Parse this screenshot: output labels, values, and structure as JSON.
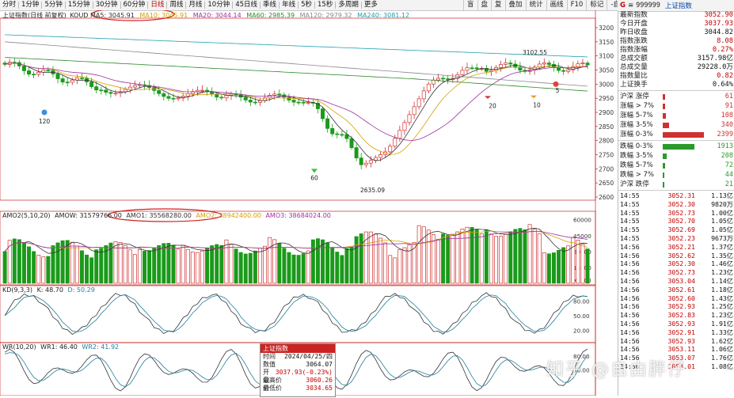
{
  "toolbar": {
    "tabs": [
      "分时",
      "1分钟",
      "5分钟",
      "15分钟",
      "30分钟",
      "60分钟",
      "日线",
      "周线",
      "月线",
      "10分钟",
      "45日线",
      "季线",
      "年线",
      "5秒",
      "15秒",
      "多周期",
      "更多"
    ],
    "active_index": 6,
    "right_buttons": [
      "盲",
      "盘",
      "复",
      "叠加",
      "统计",
      "画线",
      "F10",
      "标记",
      "-自选",
      "返回"
    ]
  },
  "price_panel": {
    "title": "上证指数(日线 前复权)",
    "indicator": "KOUD",
    "ma5": "MA5: 3045.91",
    "ma10": "MA10: 3045.91",
    "ma20": "MA20: 3044.14",
    "ma60": "MA60: 2985.39",
    "ma120": "MA120: 2979.32",
    "ma240": "MA240: 3081.12",
    "y_ticks": [
      "3200",
      "3150",
      "3100",
      "3050",
      "3000",
      "2950",
      "2900",
      "2850",
      "2800",
      "2750",
      "2700",
      "2650",
      "2600"
    ],
    "annotations": {
      "high": "3102.55",
      "low": "2635.09",
      "n120": "120",
      "n60": "60",
      "n20": "20",
      "n10": "10",
      "n5": "5"
    }
  },
  "volume_panel": {
    "title": "AMO2(5,10,20)",
    "amow": "AMOW: 31579766.00",
    "amo1": "AMO1: 35568280.00",
    "amo2": "AMO2: 38942400.00",
    "amo3": "AMO3: 38684024.00",
    "y_ticks": [
      "60000",
      "45000",
      "30000",
      "15000"
    ],
    "unit": "X1000"
  },
  "kd_panel": {
    "title": "KD(9,3,3)",
    "k": "K: 48.70",
    "d": "D: 50.29",
    "y_ticks": [
      "80.00",
      "50.00",
      "20.00"
    ]
  },
  "wr_panel": {
    "title": "WR(10,20)",
    "wr1": "WR1: 46.40",
    "wr2": "WR2: 41.92",
    "y_ticks": [
      "80.00",
      "50.00"
    ]
  },
  "popup": {
    "header": "上证指数",
    "rows": [
      {
        "k": "时间",
        "v": "2024/04/25/四"
      },
      {
        "k": "数值",
        "v": "3064.07"
      },
      {
        "k": "开盘价",
        "v": "3037.93(-0.23%)"
      },
      {
        "k": "最高价",
        "v": "3060.26"
      },
      {
        "k": "最低价",
        "v": "3034.65"
      }
    ]
  },
  "quote": {
    "code": "999999",
    "name": "上证指数",
    "rows": [
      {
        "k": "最新指数",
        "v": "3052.90",
        "c": "#c00000"
      },
      {
        "k": "今日开盘",
        "v": "3037.93",
        "c": "#c00000"
      },
      {
        "k": "昨日收盘",
        "v": "3044.82",
        "c": "#111111"
      },
      {
        "k": "指数涨跌",
        "v": "8.08",
        "c": "#c00000"
      },
      {
        "k": "指数涨幅",
        "v": "0.27%",
        "c": "#c00000"
      },
      {
        "k": "总成交额",
        "v": "3157.98亿",
        "c": "#111111"
      },
      {
        "k": "总成交量",
        "v": "29228.0万",
        "c": "#111111"
      },
      {
        "k": "指数量比",
        "v": "0.82",
        "c": "#c00000"
      },
      {
        "k": "上证换手",
        "v": "0.64%",
        "c": "#111111"
      }
    ],
    "breadth_up": [
      {
        "l": "沪深 涨停",
        "n": "61",
        "w": 3
      },
      {
        "l": "涨幅 > 7%",
        "n": "91",
        "w": 3
      },
      {
        "l": "涨幅 5-7%",
        "n": "108",
        "w": 4
      },
      {
        "l": "涨幅 3-5%",
        "n": "340",
        "w": 8
      },
      {
        "l": "涨幅 0-3%",
        "n": "2399",
        "w": 52
      }
    ],
    "breadth_down": [
      {
        "l": "跌幅 0-3%",
        "n": "1913",
        "w": 40
      },
      {
        "l": "跌幅 3-5%",
        "n": "208",
        "w": 5
      },
      {
        "l": "跌幅 5-7%",
        "n": "72",
        "w": 3
      },
      {
        "l": "跌幅 > 7%",
        "n": "44",
        "w": 2
      },
      {
        "l": "沪深 跌停",
        "n": "21",
        "w": 2
      }
    ],
    "ticks": [
      {
        "t": "14:55",
        "p": "3052.31",
        "v": "1.13亿"
      },
      {
        "t": "14:55",
        "p": "3052.30",
        "v": "9820万"
      },
      {
        "t": "14:55",
        "p": "3052.73",
        "v": "1.00亿"
      },
      {
        "t": "14:55",
        "p": "3052.70",
        "v": "1.05亿"
      },
      {
        "t": "14:55",
        "p": "3052.69",
        "v": "1.05亿"
      },
      {
        "t": "14:55",
        "p": "3052.23",
        "v": "9673万"
      },
      {
        "t": "14:56",
        "p": "3052.21",
        "v": "1.37亿"
      },
      {
        "t": "14:56",
        "p": "3052.62",
        "v": "1.35亿"
      },
      {
        "t": "14:56",
        "p": "3052.30",
        "v": "1.46亿"
      },
      {
        "t": "14:56",
        "p": "3052.73",
        "v": "1.23亿"
      },
      {
        "t": "14:56",
        "p": "3053.04",
        "v": "1.14亿"
      },
      {
        "t": "14:56",
        "p": "3052.61",
        "v": "1.18亿"
      },
      {
        "t": "14:56",
        "p": "3052.60",
        "v": "1.43亿"
      },
      {
        "t": "14:56",
        "p": "3052.93",
        "v": "1.25亿"
      },
      {
        "t": "14:56",
        "p": "3052.83",
        "v": "1.23亿"
      },
      {
        "t": "14:56",
        "p": "3052.93",
        "v": "1.91亿"
      },
      {
        "t": "14:56",
        "p": "3052.91",
        "v": "1.33亿"
      },
      {
        "t": "14:56",
        "p": "3052.93",
        "v": "1.62亿"
      },
      {
        "t": "14:56",
        "p": "3053.11",
        "v": "1.06亿"
      },
      {
        "t": "14:56",
        "p": "3053.07",
        "v": "1.76亿"
      },
      {
        "t": "14:56",
        "p": "3053.01",
        "v": "1.08亿"
      }
    ]
  },
  "watermark": "知乎 @自由胖仔"
}
